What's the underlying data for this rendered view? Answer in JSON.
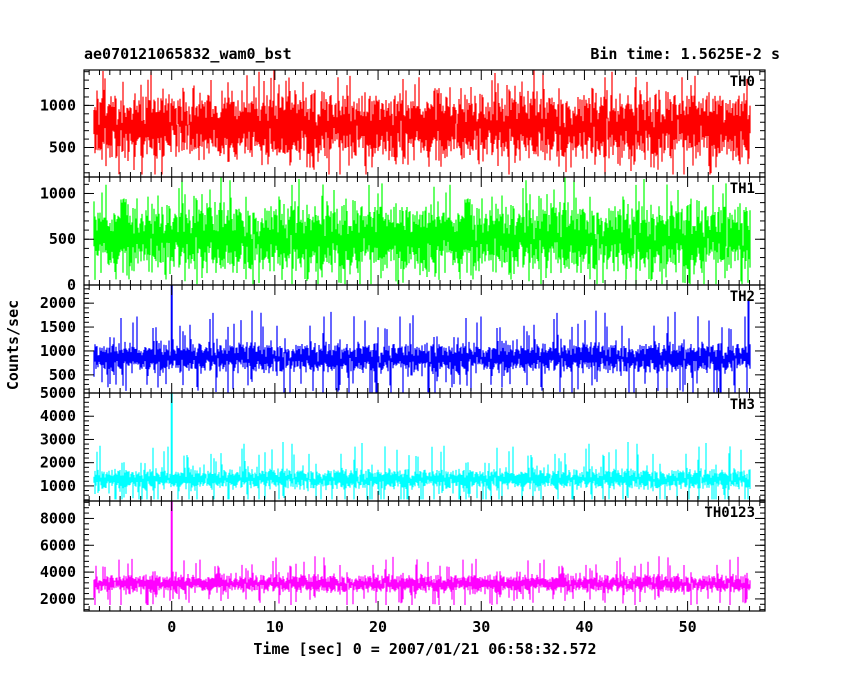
{
  "header": {
    "left_title": "ae070121065832_wam0_bst",
    "right_title": "Bin time: 1.5625E-2 s"
  },
  "chart_data": {
    "type": "line",
    "xlabel": "Time [sec] 0 = 2007/01/21 06:58:32.572",
    "ylabel": "Counts/sec",
    "xlim": [
      -8.5,
      57.5
    ],
    "x_ticks": [
      0,
      10,
      20,
      30,
      40,
      50
    ],
    "x_tick_labels": [
      "0",
      "10",
      "20",
      "30",
      "40",
      "50"
    ],
    "data_x_range": [
      -7.5,
      56
    ],
    "bin_time_s": 0.015625,
    "panels": [
      {
        "label": "TH0",
        "color": "#ff0000",
        "ylim": [
          150,
          1420
        ],
        "y_ticks": [
          500,
          1000
        ],
        "y_tick_labels": [
          "500",
          "1000"
        ],
        "series": {
          "mean": 760,
          "spread": 330,
          "min": 180,
          "max": 1420
        },
        "spikes": []
      },
      {
        "label": "TH1",
        "color": "#00ff00",
        "ylim": [
          0,
          1180
        ],
        "y_ticks": [
          0,
          500,
          1000
        ],
        "y_tick_labels": [
          "0",
          "500",
          "1000"
        ],
        "series": {
          "mean": 520,
          "spread": 310,
          "min": 10,
          "max": 1180
        },
        "spikes": []
      },
      {
        "label": "TH2",
        "color": "#0000ff",
        "ylim": [
          120,
          2380
        ],
        "y_ticks": [
          500,
          1000,
          1500,
          2000
        ],
        "y_tick_labels": [
          "500",
          "1000",
          "1500",
          "2000"
        ],
        "series": {
          "mean": 860,
          "spread": 260,
          "min": 130,
          "max": 1850
        },
        "spikes": [
          {
            "x": 0,
            "y": 2380
          },
          {
            "x": 55.9,
            "y": 2050
          }
        ]
      },
      {
        "label": "TH3",
        "color": "#00ffff",
        "ylim": [
          350,
          5000
        ],
        "y_ticks": [
          1000,
          2000,
          3000,
          4000,
          5000
        ],
        "y_tick_labels": [
          "1000",
          "2000",
          "3000",
          "4000",
          "5000"
        ],
        "series": {
          "mean": 1300,
          "spread": 360,
          "min": 420,
          "max": 2900
        },
        "spikes": [
          {
            "x": 0,
            "y": 5000
          }
        ]
      },
      {
        "label": "TH0123",
        "color": "#ff00ff",
        "ylim": [
          1100,
          9300
        ],
        "y_ticks": [
          2000,
          4000,
          6000,
          8000
        ],
        "y_tick_labels": [
          "2000",
          "4000",
          "6000",
          "8000"
        ],
        "series": {
          "mean": 3150,
          "spread": 560,
          "min": 1550,
          "max": 5200
        },
        "spikes": [
          {
            "x": 0,
            "y": 9300
          }
        ]
      }
    ]
  }
}
